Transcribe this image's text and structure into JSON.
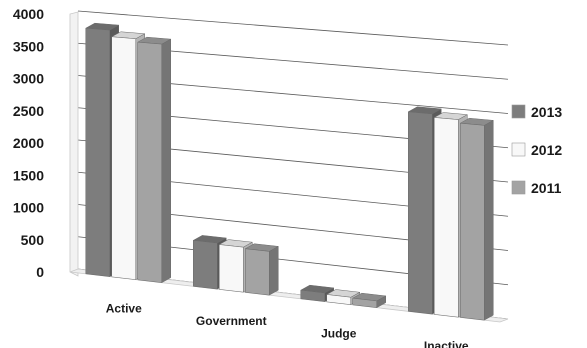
{
  "chart_data": {
    "type": "bar",
    "style": "3d-clustered-column",
    "categories": [
      "Active",
      "Government",
      "Judge",
      "Inactive"
    ],
    "series": [
      {
        "name": "2013",
        "color": "#7d7d7d",
        "values": [
          3800,
          700,
          130,
          2950
        ]
      },
      {
        "name": "2012",
        "color": "#f8f8f8",
        "values": [
          3700,
          680,
          110,
          2900
        ]
      },
      {
        "name": "2011",
        "color": "#a3a3a3",
        "values": [
          3650,
          660,
          100,
          2850
        ]
      }
    ],
    "ylim": [
      0,
      4000
    ],
    "yticks": [
      "0",
      "500",
      "1000",
      "1500",
      "2000",
      "2500",
      "3000",
      "3500",
      "4000"
    ],
    "grid": true,
    "legend": "right",
    "title": "",
    "xlabel": "",
    "ylabel": ""
  }
}
